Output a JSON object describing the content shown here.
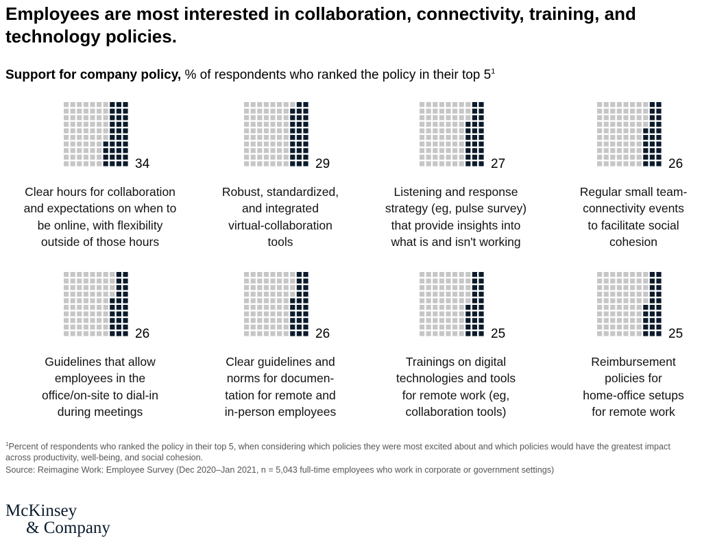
{
  "title": "Employees are most interested in collaboration, connectivity, training, and technology policies.",
  "subtitle_bold": "Support for company policy,",
  "subtitle_rest": " % of respondents who ranked the policy in their top 5",
  "subtitle_sup": "1",
  "colors": {
    "filled": "#0b1b2b",
    "empty": "#c6c6c6"
  },
  "chart_data": {
    "type": "waffle",
    "grid": {
      "rows": 10,
      "cols": 10,
      "total": 100
    },
    "unit": "% of respondents",
    "categories": [
      "Clear hours for collaboration and expectations on when to be online, with flexibility outside of those hours",
      "Robust, standardized, and integrated virtual-collaboration tools",
      "Listening and response strategy (eg, pulse survey) that provide insights into what is and isn't working",
      "Regular small team-connectivity events to facilitate social cohesion",
      "Guidelines that allow employees in the office/on-site to dial-in during meetings",
      "Clear guidelines and norms for documen-tation for remote and in-person employees",
      "Trainings on digital technologies and tools for remote work (eg, collaboration tools)",
      "Reimbursement policies for home-office setups for remote work"
    ],
    "values": [
      34,
      29,
      27,
      26,
      26,
      26,
      25,
      25
    ],
    "panels": [
      {
        "value": "34",
        "value_num": 34,
        "label_lines": [
          "Clear hours for collaboration",
          "and expectations on when to",
          "be online, with flexibility",
          "outside of those hours"
        ]
      },
      {
        "value": "29",
        "value_num": 29,
        "label_lines": [
          "Robust, standardized,",
          "and integrated",
          "virtual-collaboration",
          "tools"
        ]
      },
      {
        "value": "27",
        "value_num": 27,
        "label_lines": [
          "Listening and response",
          "strategy (eg, pulse survey)",
          "that provide insights into",
          "what is and isn't working"
        ]
      },
      {
        "value": "26",
        "value_num": 26,
        "label_lines": [
          "Regular small team-",
          "connectivity events",
          "to facilitate social",
          "cohesion"
        ]
      },
      {
        "value": "26",
        "value_num": 26,
        "label_lines": [
          "Guidelines that allow",
          "employees in the",
          "office/on-site to dial-in",
          "during meetings"
        ]
      },
      {
        "value": "26",
        "value_num": 26,
        "label_lines": [
          "Clear guidelines and",
          "norms for documen-",
          "tation  for remote and",
          "in-person employees"
        ]
      },
      {
        "value": "25",
        "value_num": 25,
        "label_lines": [
          "Trainings on digital",
          "technologies and tools",
          "for remote work (eg,",
          "collaboration tools)"
        ]
      },
      {
        "value": "25",
        "value_num": 25,
        "label_lines": [
          "Reimbursement",
          "policies for",
          "home-office setups",
          "for remote work"
        ]
      }
    ]
  },
  "footnote_sup": "1",
  "footnote": "Percent of respondents who ranked the policy in their top 5, when considering which policies they were most excited about and which policies would have the greatest impact across productivity, well-being, and social cohesion.",
  "source": "Source: Reimagine Work: Employee Survey (Dec 2020–Jan 2021, n = 5,043 full-time employees who work in corporate or government settings)",
  "logo": {
    "line1": "McKinsey",
    "line2": "& Company"
  }
}
